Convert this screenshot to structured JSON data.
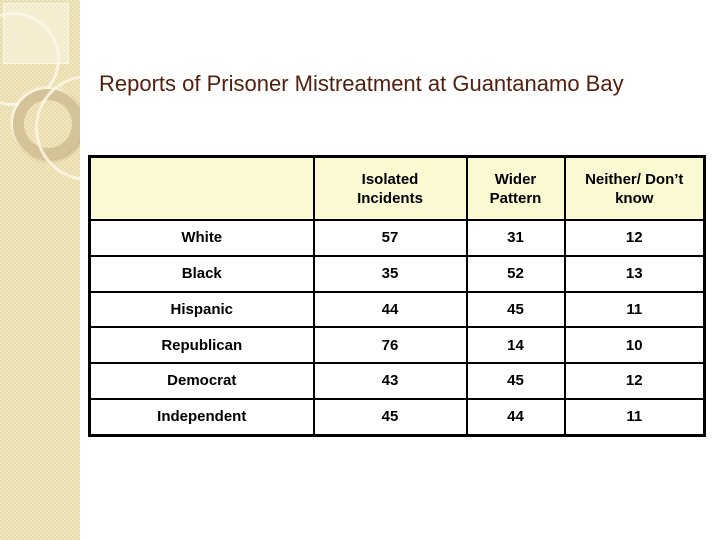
{
  "slide": {
    "title": "Reports of Prisoner Mistreatment at Guantanamo Bay"
  },
  "table": {
    "column_headers": [
      "",
      "Isolated\nIncidents",
      "Wider\nPattern",
      "Neither/ Don’t\nknow"
    ],
    "rows": [
      {
        "label": "White",
        "values": [
          "57",
          "31",
          "12"
        ]
      },
      {
        "label": "Black",
        "values": [
          "35",
          "52",
          "13"
        ]
      },
      {
        "label": "Hispanic",
        "values": [
          "44",
          "45",
          "11"
        ]
      },
      {
        "label": "Republican",
        "values": [
          "76",
          "14",
          "10"
        ]
      },
      {
        "label": "Democrat",
        "values": [
          "43",
          "45",
          "12"
        ]
      },
      {
        "label": "Independent",
        "values": [
          "45",
          "44",
          "11"
        ]
      }
    ]
  },
  "colors": {
    "title_text": "#54200E",
    "table_header_bg": "#FBF9D2",
    "table_border": "#000000",
    "table_cell_bg": "#FFFFFF",
    "sidebar_base": "#EADCA9",
    "sidebar_ring": "#D5C398"
  }
}
